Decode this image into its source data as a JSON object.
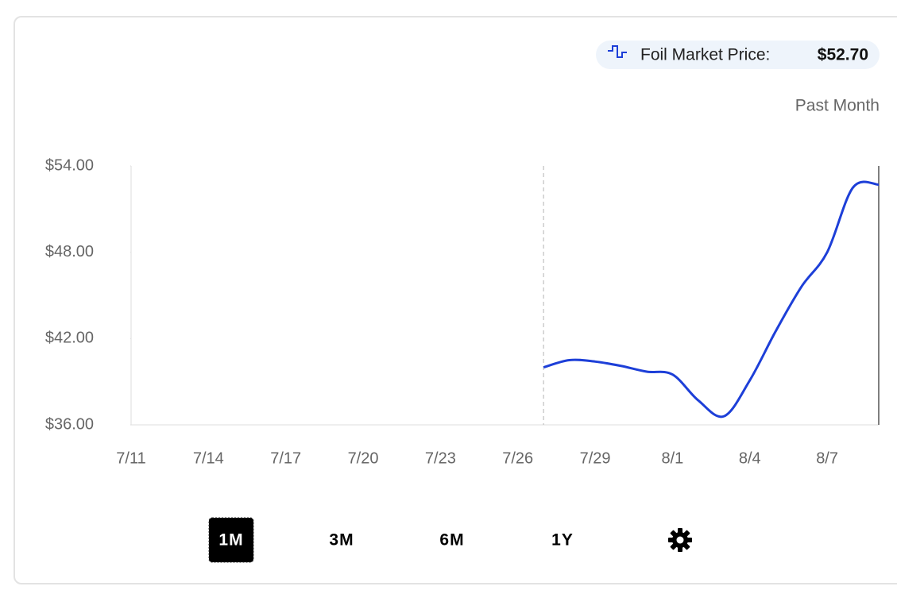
{
  "header": {
    "legend_label": "Foil Market Price:",
    "market_price": "$52.70",
    "period": "Past Month"
  },
  "chart_data": {
    "type": "line",
    "x": [
      "7/27",
      "7/28",
      "7/29",
      "7/30",
      "7/31",
      "8/1",
      "8/2",
      "8/3",
      "8/4",
      "8/5",
      "8/6",
      "8/7",
      "8/8",
      "8/9"
    ],
    "series": [
      {
        "name": "Foil Market Price",
        "color": "#1d3fd8",
        "values": [
          40.0,
          40.5,
          40.4,
          40.1,
          39.7,
          39.5,
          37.7,
          36.6,
          39.1,
          42.5,
          45.6,
          48.0,
          52.5,
          52.7
        ]
      }
    ],
    "xlim": [
      "7/11",
      "8/9"
    ],
    "xticks": [
      "7/11",
      "7/14",
      "7/17",
      "7/20",
      "7/23",
      "7/26",
      "7/29",
      "8/1",
      "8/4",
      "8/7"
    ],
    "ylim": [
      36,
      54
    ],
    "yticks": [
      {
        "value": 36,
        "label": "$36.00"
      },
      {
        "value": 42,
        "label": "$42.00"
      },
      {
        "value": 48,
        "label": "$48.00"
      },
      {
        "value": 54,
        "label": "$54.00"
      }
    ]
  },
  "range_buttons": [
    "1M",
    "3M",
    "6M",
    "1Y"
  ],
  "selected_range": "1M"
}
